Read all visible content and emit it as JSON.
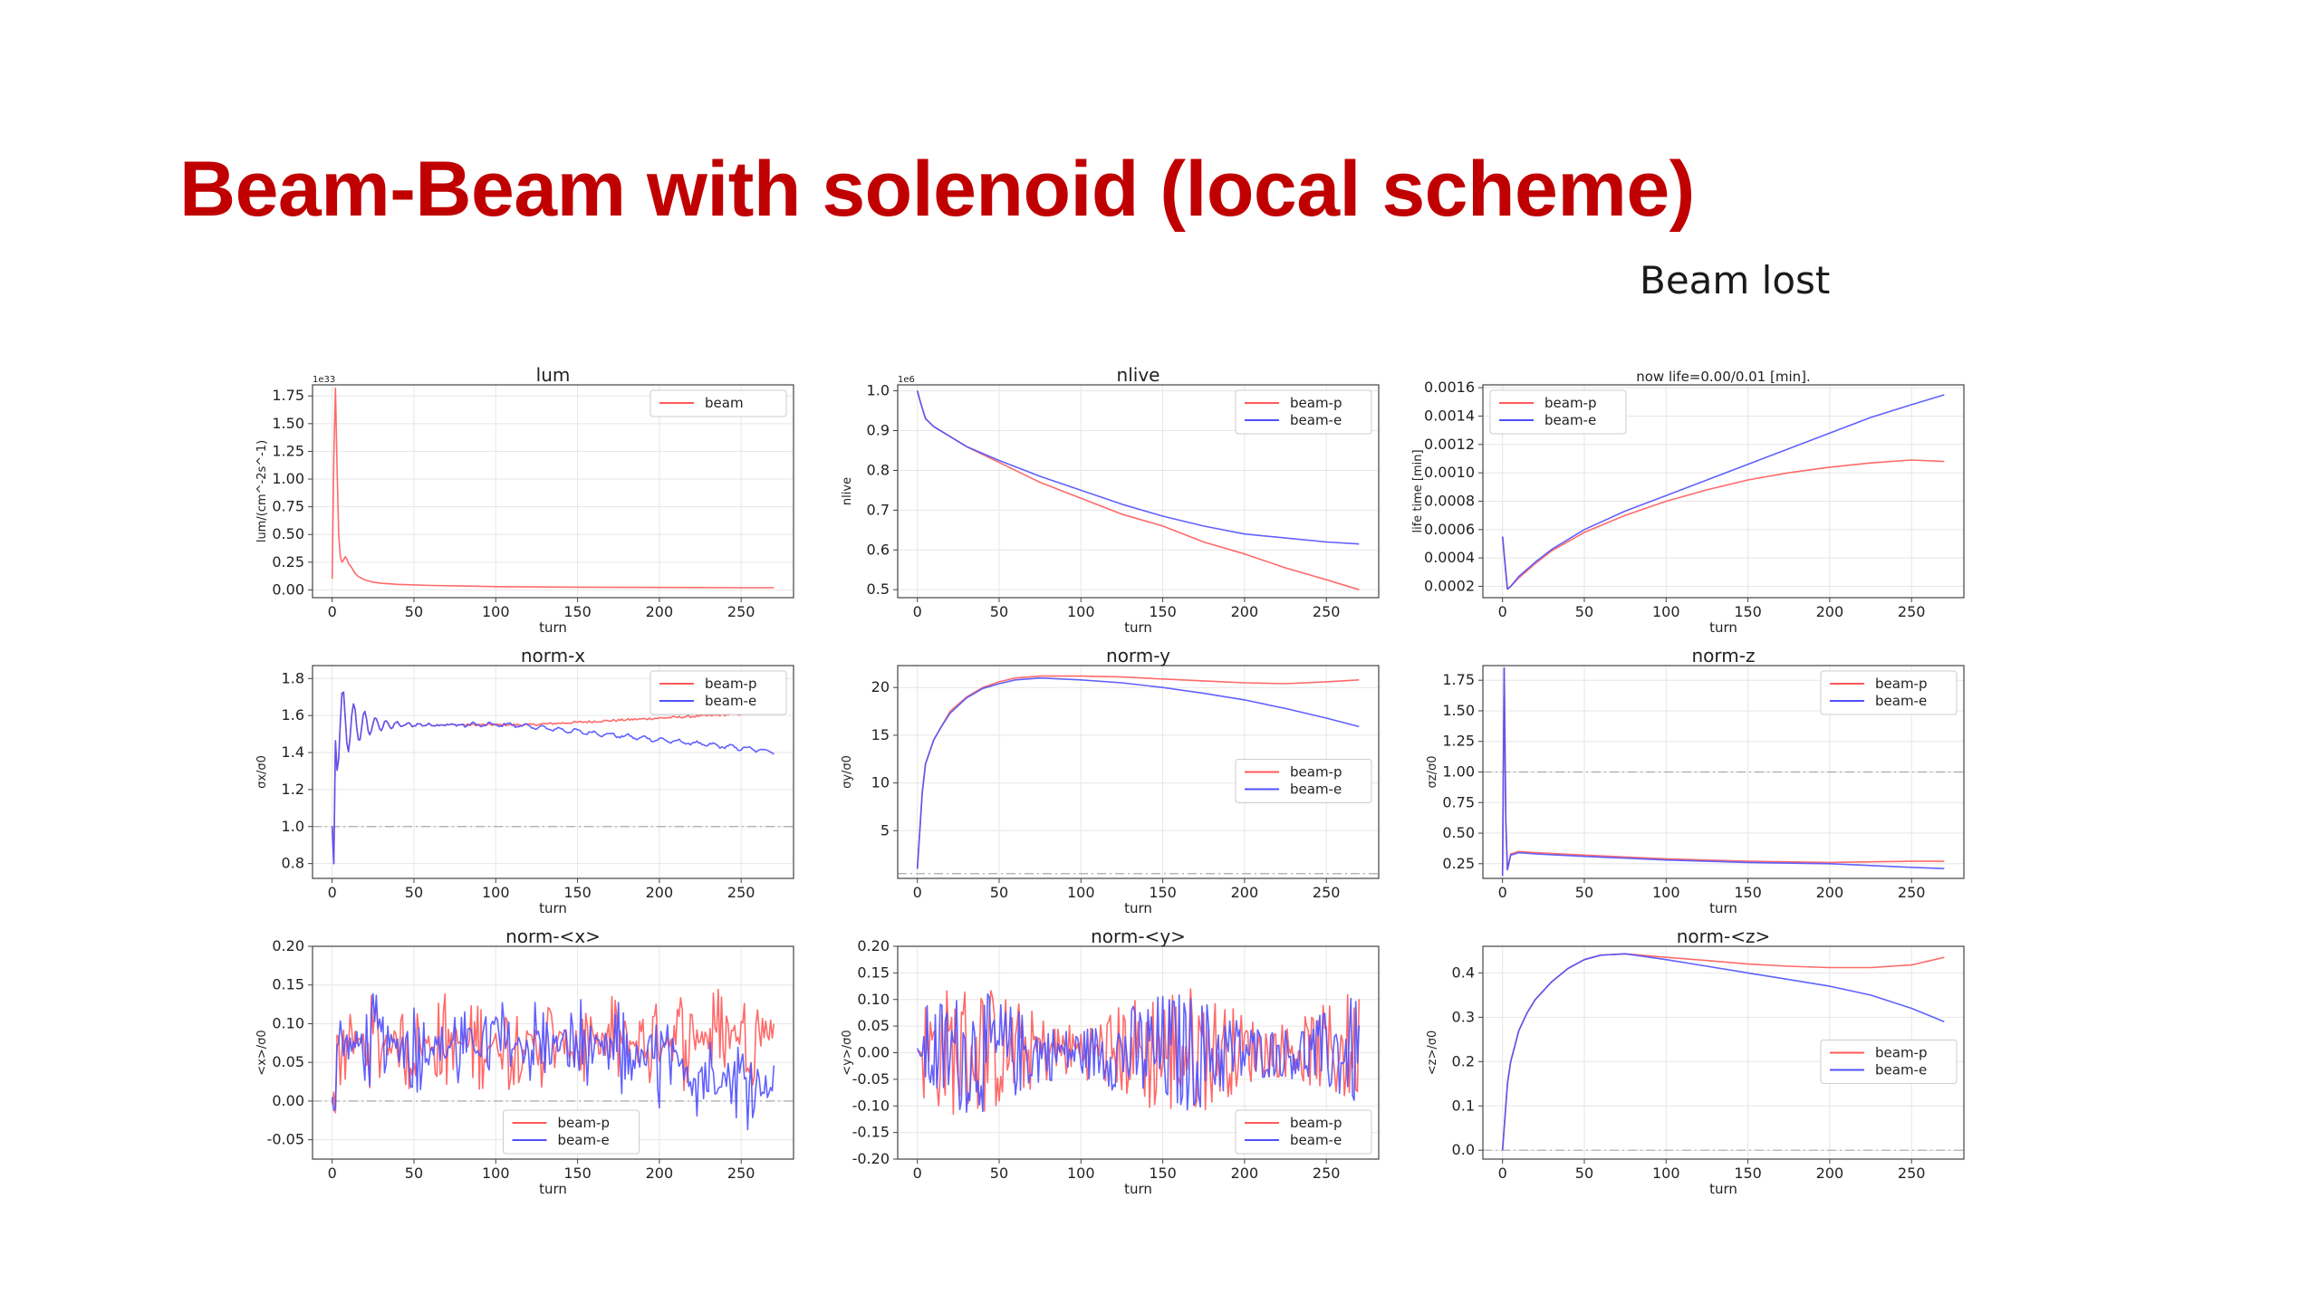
{
  "slide": {
    "title": "Beam-Beam with solenoid (local scheme)",
    "note": "Beam lost"
  },
  "colors": {
    "title": "#c00000",
    "beam_p": "#ff5a5a",
    "beam_e": "#5050ff",
    "grid": "#e6e6e6",
    "ref_line": "#aaaaaa"
  },
  "chart_data": [
    {
      "id": "lum",
      "type": "line",
      "title": "lum",
      "xlabel": "turn",
      "ylabel": "lum/(cm^-2s^-1)",
      "offset_text": "1e33",
      "xlim": [
        -12,
        282
      ],
      "ylim": [
        -0.07,
        1.85
      ],
      "xticks": [
        0,
        50,
        100,
        150,
        200,
        250
      ],
      "yticks": [
        0.0,
        0.25,
        0.5,
        0.75,
        1.0,
        1.25,
        1.5,
        1.75
      ],
      "ytick_labels": [
        "0.00",
        "0.25",
        "0.50",
        "0.75",
        "1.00",
        "1.25",
        "1.50",
        "1.75"
      ],
      "legend_loc": "upper right",
      "series": [
        {
          "name": "beam",
          "color": "#ff5a5a",
          "x": [
            0,
            1,
            2,
            3,
            4,
            5,
            6,
            7,
            8,
            9,
            10,
            11,
            12,
            14,
            16,
            20,
            25,
            30,
            40,
            60,
            80,
            100,
            150,
            200,
            250,
            270
          ],
          "y": [
            0.1,
            1.2,
            1.82,
            1.1,
            0.5,
            0.3,
            0.25,
            0.27,
            0.3,
            0.28,
            0.24,
            0.22,
            0.2,
            0.15,
            0.12,
            0.09,
            0.07,
            0.06,
            0.05,
            0.04,
            0.035,
            0.03,
            0.025,
            0.022,
            0.02,
            0.02
          ]
        }
      ]
    },
    {
      "id": "nlive",
      "type": "line",
      "title": "nlive",
      "xlabel": "turn",
      "ylabel": "nlive",
      "offset_text": "1e6",
      "xlim": [
        -12,
        282
      ],
      "ylim": [
        0.48,
        1.015
      ],
      "xticks": [
        0,
        50,
        100,
        150,
        200,
        250
      ],
      "yticks": [
        0.5,
        0.6,
        0.7,
        0.8,
        0.9,
        1.0
      ],
      "ytick_labels": [
        "0.5",
        "0.6",
        "0.7",
        "0.8",
        "0.9",
        "1.0"
      ],
      "legend_loc": "upper right",
      "series": [
        {
          "name": "beam-p",
          "color": "#ff5a5a",
          "x": [
            0,
            2,
            5,
            10,
            20,
            30,
            50,
            75,
            100,
            125,
            150,
            175,
            200,
            225,
            250,
            270
          ],
          "y": [
            1.0,
            0.97,
            0.93,
            0.91,
            0.885,
            0.86,
            0.82,
            0.77,
            0.73,
            0.69,
            0.66,
            0.62,
            0.59,
            0.555,
            0.525,
            0.5
          ]
        },
        {
          "name": "beam-e",
          "color": "#5050ff",
          "x": [
            0,
            2,
            5,
            10,
            20,
            30,
            50,
            75,
            100,
            125,
            150,
            175,
            200,
            225,
            250,
            270
          ],
          "y": [
            1.0,
            0.97,
            0.93,
            0.91,
            0.885,
            0.86,
            0.825,
            0.785,
            0.75,
            0.715,
            0.685,
            0.66,
            0.64,
            0.63,
            0.62,
            0.615
          ]
        }
      ]
    },
    {
      "id": "life",
      "type": "line",
      "title": "now life=0.00/0.01 [min].",
      "xlabel": "turn",
      "ylabel": "life time [min]",
      "xlim": [
        -12,
        282
      ],
      "ylim": [
        0.00012,
        0.00162
      ],
      "xticks": [
        0,
        50,
        100,
        150,
        200,
        250
      ],
      "yticks": [
        0.0002,
        0.0004,
        0.0006,
        0.0008,
        0.001,
        0.0012,
        0.0014,
        0.0016
      ],
      "ytick_labels": [
        "0.0002",
        "0.0004",
        "0.0006",
        "0.0008",
        "0.0010",
        "0.0012",
        "0.0014",
        "0.0016"
      ],
      "legend_loc": "upper left",
      "series": [
        {
          "name": "beam-p",
          "color": "#ff5a5a",
          "x": [
            0,
            2,
            3,
            5,
            10,
            20,
            30,
            50,
            75,
            100,
            125,
            150,
            175,
            200,
            225,
            250,
            270
          ],
          "y": [
            0.00055,
            0.0003,
            0.00018,
            0.0002,
            0.00026,
            0.00036,
            0.00045,
            0.00058,
            0.0007,
            0.0008,
            0.00088,
            0.00095,
            0.001,
            0.00104,
            0.00107,
            0.00109,
            0.00108
          ]
        },
        {
          "name": "beam-e",
          "color": "#5050ff",
          "x": [
            0,
            2,
            3,
            5,
            10,
            20,
            30,
            50,
            75,
            100,
            125,
            150,
            175,
            200,
            225,
            250,
            270
          ],
          "y": [
            0.00055,
            0.0003,
            0.00018,
            0.0002,
            0.00027,
            0.00037,
            0.00046,
            0.0006,
            0.00073,
            0.00084,
            0.00095,
            0.00106,
            0.00117,
            0.00128,
            0.00139,
            0.00148,
            0.00155
          ]
        }
      ]
    },
    {
      "id": "norm-x",
      "type": "line",
      "title": "norm-x",
      "xlabel": "turn",
      "ylabel": "σx/σ0",
      "xlim": [
        -12,
        282
      ],
      "ylim": [
        0.72,
        1.87
      ],
      "hline": 1.0,
      "xticks": [
        0,
        50,
        100,
        150,
        200,
        250
      ],
      "yticks": [
        0.8,
        1.0,
        1.2,
        1.4,
        1.6,
        1.8
      ],
      "ytick_labels": [
        "0.8",
        "1.0",
        "1.2",
        "1.4",
        "1.6",
        "1.8"
      ],
      "legend_loc": "upper right",
      "generator": "normx",
      "series": [
        {
          "name": "beam-p",
          "color": "#ff5a5a"
        },
        {
          "name": "beam-e",
          "color": "#5050ff"
        }
      ]
    },
    {
      "id": "norm-y",
      "type": "line",
      "title": "norm-y",
      "xlabel": "turn",
      "ylabel": "σy/σ0",
      "xlim": [
        -12,
        282
      ],
      "ylim": [
        0,
        22.3
      ],
      "hline": 0.5,
      "xticks": [
        0,
        50,
        100,
        150,
        200,
        250
      ],
      "yticks": [
        5,
        10,
        15,
        20
      ],
      "ytick_labels": [
        "5",
        "10",
        "15",
        "20"
      ],
      "legend_loc": "center right",
      "series": [
        {
          "name": "beam-p",
          "color": "#ff5a5a",
          "x": [
            0,
            3,
            5,
            8,
            10,
            15,
            20,
            30,
            40,
            50,
            60,
            75,
            100,
            125,
            150,
            175,
            200,
            225,
            250,
            270
          ],
          "y": [
            1,
            9,
            12,
            13.5,
            14.5,
            16,
            17.5,
            19,
            20,
            20.6,
            21,
            21.2,
            21.2,
            21.1,
            20.9,
            20.7,
            20.5,
            20.4,
            20.6,
            20.8
          ]
        },
        {
          "name": "beam-e",
          "color": "#5050ff",
          "x": [
            0,
            3,
            5,
            8,
            10,
            15,
            20,
            30,
            40,
            50,
            60,
            75,
            100,
            125,
            150,
            175,
            200,
            225,
            250,
            270
          ],
          "y": [
            1,
            9,
            12,
            13.5,
            14.5,
            16,
            17.3,
            18.9,
            19.9,
            20.4,
            20.8,
            21.0,
            20.8,
            20.5,
            20.0,
            19.4,
            18.7,
            17.8,
            16.8,
            15.9
          ]
        }
      ]
    },
    {
      "id": "norm-z",
      "type": "line",
      "title": "norm-z",
      "xlabel": "turn",
      "ylabel": "σz/σ0",
      "xlim": [
        -12,
        282
      ],
      "ylim": [
        0.13,
        1.87
      ],
      "hline": 1.0,
      "xticks": [
        0,
        50,
        100,
        150,
        200,
        250
      ],
      "yticks": [
        0.25,
        0.5,
        0.75,
        1.0,
        1.25,
        1.5,
        1.75
      ],
      "ytick_labels": [
        "0.25",
        "0.50",
        "0.75",
        "1.00",
        "1.25",
        "1.50",
        "1.75"
      ],
      "legend_loc": "upper right",
      "series": [
        {
          "name": "beam-p",
          "color": "#ff5a5a",
          "x": [
            0,
            1,
            2,
            3,
            5,
            10,
            20,
            50,
            100,
            150,
            200,
            250,
            270
          ],
          "y": [
            0.15,
            1.85,
            0.6,
            0.2,
            0.33,
            0.35,
            0.34,
            0.32,
            0.29,
            0.27,
            0.26,
            0.27,
            0.27
          ]
        },
        {
          "name": "beam-e",
          "color": "#5050ff",
          "x": [
            0,
            1,
            2,
            3,
            5,
            10,
            20,
            50,
            100,
            150,
            200,
            250,
            270
          ],
          "y": [
            0.15,
            1.85,
            0.6,
            0.2,
            0.32,
            0.34,
            0.33,
            0.31,
            0.28,
            0.26,
            0.25,
            0.22,
            0.21
          ]
        }
      ]
    },
    {
      "id": "norm-mean-x",
      "type": "line",
      "title": "norm-<x>",
      "xlabel": "turn",
      "ylabel": "<x>/σ0",
      "xlim": [
        -12,
        282
      ],
      "ylim": [
        -0.075,
        0.2
      ],
      "hline": 0.0,
      "xticks": [
        0,
        50,
        100,
        150,
        200,
        250
      ],
      "yticks": [
        -0.05,
        0.0,
        0.05,
        0.1,
        0.15,
        0.2
      ],
      "ytick_labels": [
        "-0.05",
        "0.00",
        "0.05",
        "0.10",
        "0.15",
        "0.20"
      ],
      "legend_loc": "lower center",
      "generator": "meanx",
      "series": [
        {
          "name": "beam-p",
          "color": "#ff5a5a"
        },
        {
          "name": "beam-e",
          "color": "#5050ff"
        }
      ]
    },
    {
      "id": "norm-mean-y",
      "type": "line",
      "title": "norm-<y>",
      "xlabel": "turn",
      "ylabel": "<y>/σ0",
      "xlim": [
        -12,
        282
      ],
      "ylim": [
        -0.2,
        0.2
      ],
      "xticks": [
        0,
        50,
        100,
        150,
        200,
        250
      ],
      "yticks": [
        -0.2,
        -0.15,
        -0.1,
        -0.05,
        0.0,
        0.05,
        0.1,
        0.15,
        0.2
      ],
      "ytick_labels": [
        "-0.20",
        "-0.15",
        "-0.10",
        "-0.05",
        "0.00",
        "0.05",
        "0.10",
        "0.15",
        "0.20"
      ],
      "legend_loc": "lower right",
      "generator": "meany",
      "series": [
        {
          "name": "beam-p",
          "color": "#ff5a5a"
        },
        {
          "name": "beam-e",
          "color": "#5050ff"
        }
      ]
    },
    {
      "id": "norm-mean-z",
      "type": "line",
      "title": "norm-<z>",
      "xlabel": "turn",
      "ylabel": "<z>/σ0",
      "xlim": [
        -12,
        282
      ],
      "ylim": [
        -0.02,
        0.46
      ],
      "hline": 0.0,
      "xticks": [
        0,
        50,
        100,
        150,
        200,
        250
      ],
      "yticks": [
        0.0,
        0.1,
        0.2,
        0.3,
        0.4
      ],
      "ytick_labels": [
        "0.0",
        "0.1",
        "0.2",
        "0.3",
        "0.4"
      ],
      "legend_loc": "center right",
      "series": [
        {
          "name": "beam-p",
          "color": "#ff5a5a",
          "x": [
            0,
            3,
            5,
            10,
            15,
            20,
            30,
            40,
            50,
            60,
            75,
            100,
            125,
            150,
            175,
            200,
            225,
            250,
            270
          ],
          "y": [
            0.0,
            0.15,
            0.2,
            0.27,
            0.31,
            0.34,
            0.38,
            0.41,
            0.43,
            0.44,
            0.443,
            0.435,
            0.428,
            0.42,
            0.415,
            0.412,
            0.412,
            0.418,
            0.435
          ]
        },
        {
          "name": "beam-e",
          "color": "#5050ff",
          "x": [
            0,
            3,
            5,
            10,
            15,
            20,
            30,
            40,
            50,
            60,
            75,
            100,
            125,
            150,
            175,
            200,
            225,
            250,
            270
          ],
          "y": [
            0.0,
            0.15,
            0.2,
            0.27,
            0.31,
            0.34,
            0.38,
            0.41,
            0.43,
            0.44,
            0.443,
            0.43,
            0.415,
            0.4,
            0.385,
            0.37,
            0.35,
            0.32,
            0.29
          ]
        }
      ]
    }
  ]
}
